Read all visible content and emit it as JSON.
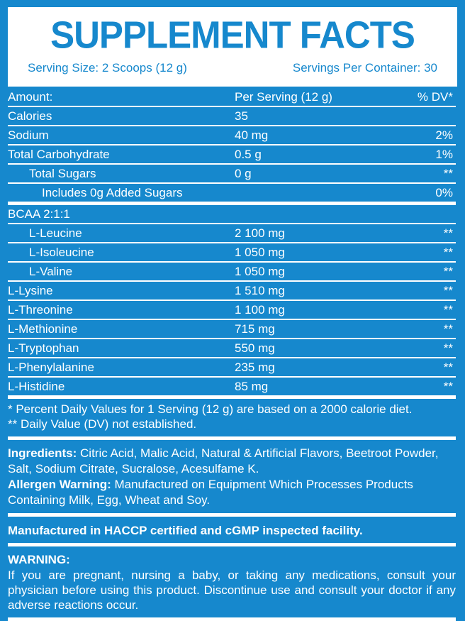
{
  "colors": {
    "background_blue": "#1688cd",
    "panel_white": "#ffffff"
  },
  "header": {
    "title": "SUPPLEMENT FACTS",
    "serving_size": "Serving Size: 2 Scoops (12 g)",
    "servings_per_container": "Servings Per Container: 30"
  },
  "table": {
    "columns": [
      "Amount:",
      "Per Serving (12 g)",
      "% DV*"
    ],
    "rows": [
      {
        "name": "Calories",
        "amount": "35",
        "dv": "",
        "indent": 0
      },
      {
        "name": "Sodium",
        "amount": "40 mg",
        "dv": "2%",
        "indent": 0
      },
      {
        "name": "Total Carbohydrate",
        "amount": "0.5 g",
        "dv": "1%",
        "indent": 0
      },
      {
        "name": "Total Sugars",
        "amount": "0 g",
        "dv": "**",
        "indent": 1
      },
      {
        "name": "Includes 0g Added Sugars",
        "amount": "",
        "dv": "0%",
        "indent": 2,
        "thick_after": true
      },
      {
        "name": "BCAA 2:1:1",
        "amount": "",
        "dv": "",
        "indent": 0,
        "section": true
      },
      {
        "name": "L-Leucine",
        "amount": "2 100 mg",
        "dv": "**",
        "indent": 1
      },
      {
        "name": "L-Isoleucine",
        "amount": "1 050 mg",
        "dv": "**",
        "indent": 1
      },
      {
        "name": "L-Valine",
        "amount": "1 050 mg",
        "dv": "**",
        "indent": 1
      },
      {
        "name": "L-Lysine",
        "amount": "1 510 mg",
        "dv": "**",
        "indent": 0
      },
      {
        "name": "L-Threonine",
        "amount": "1 100 mg",
        "dv": "**",
        "indent": 0
      },
      {
        "name": "L-Methionine",
        "amount": "715 mg",
        "dv": "**",
        "indent": 0
      },
      {
        "name": "L-Tryptophan",
        "amount": "550 mg",
        "dv": "**",
        "indent": 0
      },
      {
        "name": "L-Phenylalanine",
        "amount": "235 mg",
        "dv": "**",
        "indent": 0
      },
      {
        "name": "L-Histidine",
        "amount": "85 mg",
        "dv": "**",
        "indent": 0,
        "thick_after": true
      }
    ],
    "footnotes": [
      "* Percent Daily Values for 1 Serving (12 g) are based on a 2000 calorie diet.",
      "** Daily Value (DV) not established."
    ]
  },
  "ingredients": {
    "label": "Ingredients:",
    "text": " Citric Acid, Malic Acid, Natural & Artificial Flavors, Beetroot Powder, Salt, Sodium Citrate, Sucralose, Acesulfame K."
  },
  "allergen": {
    "label": "Allergen Warning:",
    "text": " Manufactured on Equipment Which Processes Products Containing Milk, Egg, Wheat and Soy."
  },
  "facility": "Manufactured in HACCP certified and cGMP inspected facility.",
  "warning": {
    "label": "WARNING:",
    "text": "If you are pregnant, nursing a baby, or taking any medications, consult your physician before using this product. Discontinue use and consult your doctor if any adverse reactions occur."
  }
}
